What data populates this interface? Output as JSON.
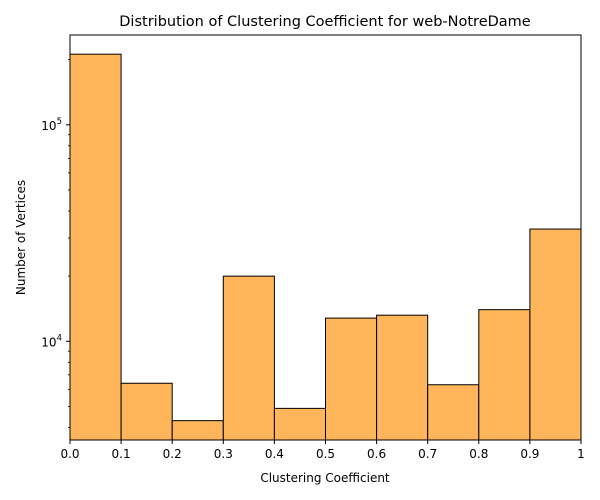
{
  "chart_data": {
    "type": "bar",
    "title": "Distribution of Clustering Coefficient for web-NotreDame",
    "xlabel": "Clustering Coefficient",
    "ylabel": "Number of Vertices",
    "x_scale": "linear",
    "y_scale": "log",
    "xlim": [
      0,
      1
    ],
    "ylim": [
      3500,
      260000
    ],
    "grid": false,
    "bar_color": "#ffb55a",
    "edge_color": "#000000",
    "bins": [
      {
        "start": 0.0,
        "end": 0.1,
        "value": 212000
      },
      {
        "start": 0.1,
        "end": 0.2,
        "value": 6400
      },
      {
        "start": 0.2,
        "end": 0.3,
        "value": 4300
      },
      {
        "start": 0.3,
        "end": 0.4,
        "value": 20000
      },
      {
        "start": 0.4,
        "end": 0.5,
        "value": 4900
      },
      {
        "start": 0.5,
        "end": 0.6,
        "value": 12800
      },
      {
        "start": 0.6,
        "end": 0.7,
        "value": 13200
      },
      {
        "start": 0.7,
        "end": 0.8,
        "value": 6300
      },
      {
        "start": 0.8,
        "end": 0.9,
        "value": 14000
      },
      {
        "start": 0.9,
        "end": 1.0,
        "value": 33000
      }
    ],
    "x_ticks": [
      {
        "value": 0.0,
        "label": "0.0"
      },
      {
        "value": 0.1,
        "label": "0.1"
      },
      {
        "value": 0.2,
        "label": "0.2"
      },
      {
        "value": 0.3,
        "label": "0.3"
      },
      {
        "value": 0.4,
        "label": "0.4"
      },
      {
        "value": 0.5,
        "label": "0.5"
      },
      {
        "value": 0.6,
        "label": "0.6"
      },
      {
        "value": 0.7,
        "label": "0.7"
      },
      {
        "value": 0.8,
        "label": "0.8"
      },
      {
        "value": 0.9,
        "label": "0.9"
      },
      {
        "value": 1.0,
        "label": "1"
      }
    ],
    "y_major_ticks": [
      {
        "value": 10000,
        "base": "10",
        "exp": "4"
      },
      {
        "value": 100000,
        "base": "10",
        "exp": "5"
      }
    ]
  }
}
